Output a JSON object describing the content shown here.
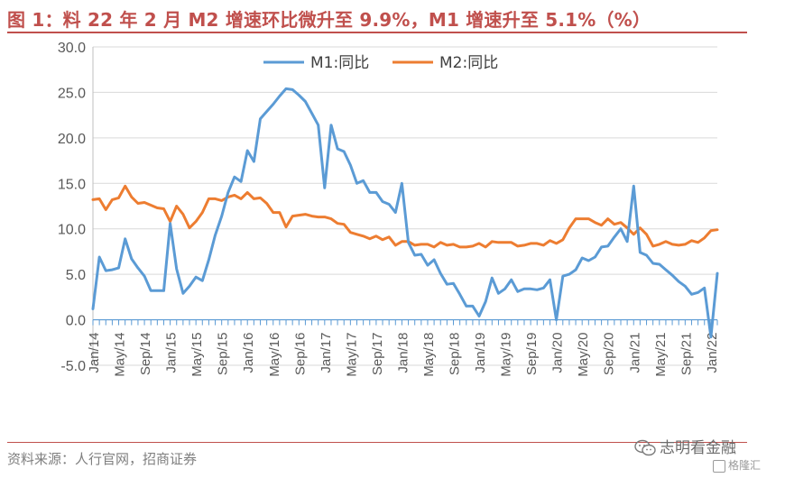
{
  "title": "图 1：料 22 年 2 月 M2 增速环比微升至 9.9%，M1 增速升至 5.1%（%）",
  "source": "资料来源：人行官网，招商证券",
  "watermark": "志明看金融",
  "watermark_logo": "格隆汇",
  "chart_data": {
    "type": "line",
    "ylim": [
      -5,
      30
    ],
    "yticks": [
      "-5.0",
      "0.0",
      "5.0",
      "10.0",
      "15.0",
      "20.0",
      "25.0",
      "30.0"
    ],
    "grid": "horizontal",
    "legend": "top",
    "x_tick_labels": [
      "Jan/14",
      "May/14",
      "Sep/14",
      "Jan/15",
      "May/15",
      "Sep/15",
      "Jan/16",
      "May/16",
      "Sep/16",
      "Jan/17",
      "May/17",
      "Sep/17",
      "Jan/18",
      "May/18",
      "Sep/18",
      "Jan/19",
      "May/19",
      "Sep/19",
      "Jan/20",
      "May/20",
      "Sep/20",
      "Jan/21",
      "May/21",
      "Sep/21",
      "Jan/22"
    ],
    "x_start": "2014-01",
    "x_end": "2022-02",
    "series": [
      {
        "name": "M1:同比",
        "color": "#5b9bd5",
        "values": [
          1.2,
          6.9,
          5.4,
          5.5,
          5.7,
          8.9,
          6.7,
          5.7,
          4.8,
          3.2,
          3.2,
          3.2,
          10.6,
          5.6,
          2.9,
          3.7,
          4.7,
          4.3,
          6.6,
          9.3,
          11.4,
          14.0,
          15.7,
          15.2,
          18.6,
          17.4,
          22.1,
          22.9,
          23.7,
          24.6,
          25.4,
          25.3,
          24.7,
          24.0,
          22.7,
          21.4,
          14.5,
          21.4,
          18.8,
          18.5,
          17.0,
          15.0,
          15.3,
          14.0,
          14.0,
          13.0,
          12.7,
          11.8,
          15.0,
          8.5,
          7.1,
          7.2,
          6.0,
          6.6,
          5.1,
          3.9,
          4.0,
          2.8,
          1.5,
          1.5,
          0.4,
          2.0,
          4.6,
          2.9,
          3.4,
          4.4,
          3.1,
          3.4,
          3.4,
          3.3,
          3.5,
          4.4,
          0.0,
          4.8,
          5.0,
          5.5,
          6.8,
          6.5,
          6.9,
          8.0,
          8.1,
          9.1,
          10.0,
          8.6,
          14.7,
          7.4,
          7.1,
          6.2,
          6.1,
          5.5,
          4.9,
          4.2,
          3.7,
          2.8,
          3.0,
          3.5,
          -1.9,
          5.1
        ]
      },
      {
        "name": "M2:同比",
        "color": "#ed7d31",
        "values": [
          13.2,
          13.3,
          12.1,
          13.2,
          13.4,
          14.7,
          13.5,
          12.8,
          12.9,
          12.6,
          12.3,
          12.2,
          10.8,
          12.5,
          11.6,
          10.1,
          10.8,
          11.8,
          13.3,
          13.3,
          13.1,
          13.5,
          13.7,
          13.3,
          14.0,
          13.3,
          13.4,
          12.8,
          11.8,
          11.8,
          10.2,
          11.4,
          11.5,
          11.6,
          11.4,
          11.3,
          11.3,
          11.1,
          10.6,
          10.5,
          9.6,
          9.4,
          9.2,
          8.9,
          9.2,
          8.8,
          9.1,
          8.2,
          8.6,
          8.6,
          8.2,
          8.3,
          8.3,
          8.0,
          8.5,
          8.2,
          8.3,
          8.0,
          8.0,
          8.1,
          8.4,
          8.0,
          8.6,
          8.5,
          8.5,
          8.5,
          8.1,
          8.2,
          8.4,
          8.4,
          8.2,
          8.7,
          8.4,
          8.8,
          10.1,
          11.1,
          11.1,
          11.1,
          10.7,
          10.4,
          11.1,
          10.5,
          10.7,
          10.1,
          9.4,
          10.1,
          9.4,
          8.1,
          8.3,
          8.6,
          8.3,
          8.2,
          8.3,
          8.7,
          8.5,
          9.0,
          9.8,
          9.9
        ]
      }
    ]
  }
}
